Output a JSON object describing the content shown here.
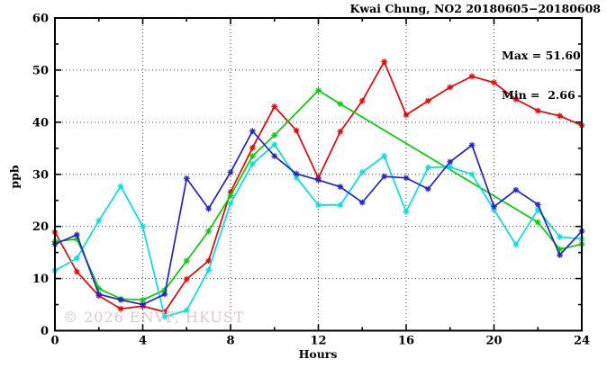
{
  "header": {
    "title": "Kwai Chung, NO2 20180605−20180608"
  },
  "stats": {
    "max_label": "Max = 51.60",
    "min_label": "Min =  2.66"
  },
  "watermark": "© 2026 ENVF, HKUST",
  "chart_data": {
    "type": "line",
    "title": "Kwai Chung, NO2 20180605−20180608",
    "xlabel": "Hours",
    "ylabel": "ppb",
    "xlim": [
      0,
      24
    ],
    "ylim": [
      0,
      60
    ],
    "x_ticks": [
      0,
      4,
      8,
      12,
      16,
      20,
      24
    ],
    "x_minor_step": 2,
    "y_ticks": [
      0,
      10,
      20,
      30,
      40,
      50,
      60
    ],
    "y_minor_step": 5,
    "grid": true,
    "legend_position": "none",
    "max": 51.6,
    "min": 2.66,
    "x": [
      0,
      1,
      2,
      3,
      4,
      5,
      6,
      7,
      8,
      9,
      10,
      11,
      12,
      13,
      14,
      15,
      16,
      17,
      18,
      19,
      20,
      21,
      22,
      23,
      24
    ],
    "series": [
      {
        "name": "day-red",
        "color": "#ee0000",
        "values": [
          18.9,
          11.3,
          6.7,
          4.2,
          4.7,
          3.6,
          9.9,
          13.4,
          26.6,
          35.1,
          43.0,
          38.4,
          29.3,
          38.2,
          44.1,
          51.6,
          41.4,
          44.1,
          46.7,
          48.8,
          47.6,
          44.4,
          42.2,
          41.2,
          39.4
        ]
      },
      {
        "name": "day-green",
        "color": "#00cf00",
        "values": [
          17.1,
          17.6,
          8.1,
          6.1,
          5.9,
          7.8,
          13.4,
          19.1,
          25.9,
          33.5,
          37.5,
          null,
          46.1,
          43.5,
          null,
          null,
          null,
          null,
          null,
          null,
          null,
          null,
          20.8,
          15.6,
          16.6
        ]
      },
      {
        "name": "day-cyan",
        "color": "#00e0e0",
        "values": [
          11.5,
          13.9,
          21.1,
          27.7,
          20.0,
          2.66,
          3.9,
          11.6,
          24.4,
          32.0,
          35.7,
          29.4,
          24.1,
          24.1,
          30.4,
          33.5,
          22.8,
          31.3,
          31.4,
          30.0,
          23.2,
          16.5,
          23.2,
          18.0,
          17.6
        ]
      },
      {
        "name": "day-blue",
        "color": "#2222cc",
        "values": [
          16.6,
          18.4,
          7.0,
          5.9,
          5.0,
          7.0,
          29.2,
          23.4,
          30.4,
          38.3,
          33.5,
          30.1,
          28.9,
          27.6,
          24.6,
          29.6,
          29.3,
          27.2,
          32.4,
          35.6,
          23.8,
          27.0,
          24.2,
          14.5,
          19.1
        ]
      }
    ]
  }
}
